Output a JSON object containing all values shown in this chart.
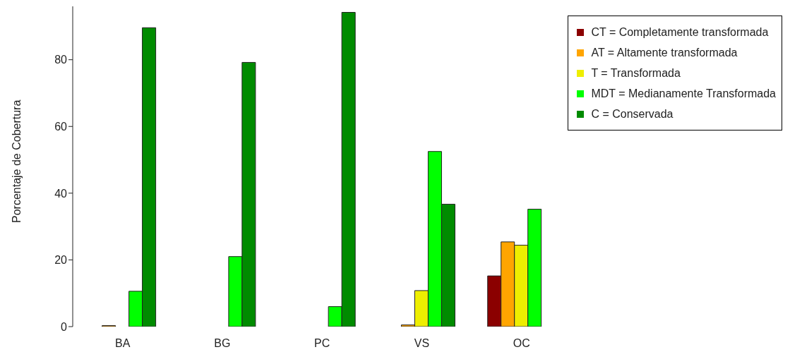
{
  "chart_data": {
    "type": "bar",
    "ylabel": "Porcentaje de Cobertura",
    "categories": [
      "BA",
      "BG",
      "PC",
      "VS",
      "OC"
    ],
    "series": [
      {
        "name": "CT = Completamente transformada",
        "color": "#8b0000",
        "values": [
          0,
          0,
          0,
          0,
          15.2
        ]
      },
      {
        "name": "AT = Altamente transformada",
        "color": "#ffa500",
        "values": [
          0.3,
          0,
          0,
          0.5,
          25.4
        ]
      },
      {
        "name": "T = Transformada",
        "color": "#eeee00",
        "values": [
          0,
          0,
          0,
          10.8,
          24.4
        ]
      },
      {
        "name": "MDT = Medianamente Transformada",
        "color": "#00ff00",
        "values": [
          10.6,
          21,
          6,
          52.5,
          35.2
        ]
      },
      {
        "name": "C = Conservada",
        "color": "#008b00",
        "values": [
          89.6,
          79.2,
          94.2,
          36.7,
          0
        ]
      }
    ],
    "ylim": [
      0,
      96
    ],
    "yticks": [
      0,
      20,
      40,
      60,
      80
    ],
    "grid": false,
    "legend": "top right"
  }
}
